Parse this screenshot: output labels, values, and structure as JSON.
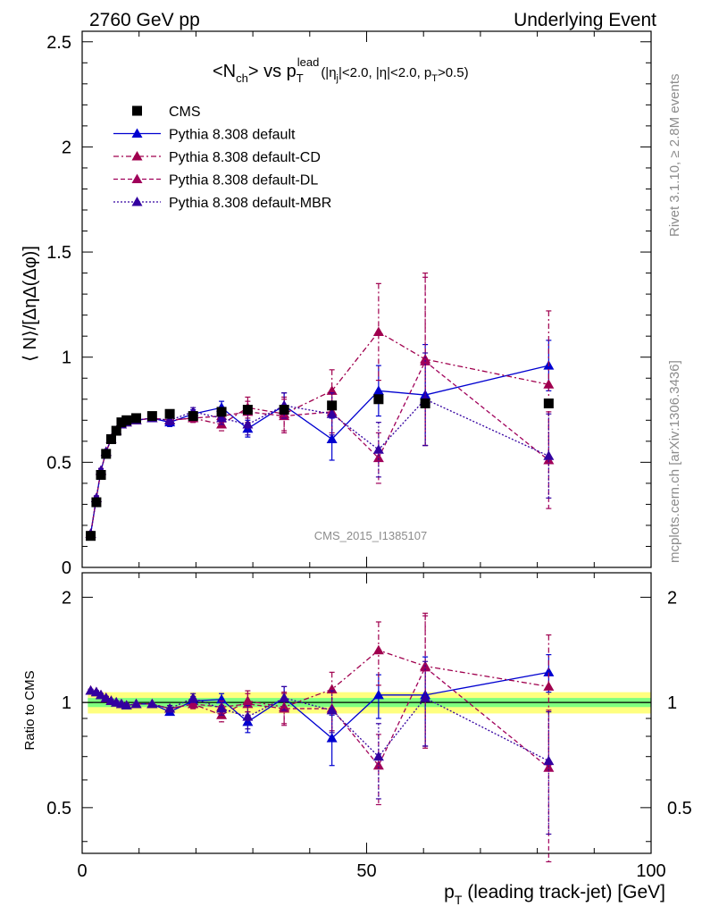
{
  "header": {
    "left": "2760 GeV pp",
    "right": "Underlying Event"
  },
  "title": {
    "main": "<N",
    "main_sub": "ch",
    "main_rest": "> vs p",
    "pt_sub": "T",
    "pt_sup": "lead",
    "cuts_1": "(|η",
    "cuts_sub1": "j",
    "cuts_2": "|<2.0, |η|<2.0, p",
    "cuts_sub2": "T",
    "cuts_3": ">0.5)"
  },
  "side_labels": {
    "rivet": "Rivet 3.1.10, ≥ 2.8M events",
    "mcplots": "mcplots.cern.ch [arXiv:1306.3436]"
  },
  "watermark": "CMS_2015_I1385107",
  "ylabel_main": "⟨ N⟩/[ΔηΔ(Δφ)]",
  "ylabel_ratio": "Ratio to CMS",
  "xlabel": {
    "p": "p",
    "sub": "T",
    "rest": " (leading track-jet) [GeV]"
  },
  "colors": {
    "data": "#000000",
    "default": "#0000d0",
    "cd": "#a0004e",
    "dl": "#a0005a",
    "mbr": "#3300a0",
    "band_inner": "#7fff7f",
    "band_outer": "#ffff7f"
  },
  "chart_data": [
    {
      "type": "scatter",
      "panel": "main",
      "xlim": [
        0,
        100
      ],
      "ylim": [
        0,
        2.55
      ],
      "x_ticks": [
        "0",
        "50",
        "100"
      ],
      "y_ticks": [
        "0",
        "0.5",
        "1",
        "1.5",
        "2",
        "2.5"
      ],
      "x": [
        1.5,
        2.5,
        3.3,
        4.2,
        5.1,
        6.0,
        6.9,
        7.8,
        9.5,
        12.3,
        15.4,
        19.5,
        24.5,
        29.1,
        35.5,
        43.9,
        52.1,
        60.3,
        82.0
      ],
      "series": [
        {
          "name": "CMS",
          "marker": "square",
          "color_key": "data",
          "y": [
            0.15,
            0.31,
            0.44,
            0.54,
            0.61,
            0.65,
            0.69,
            0.7,
            0.71,
            0.72,
            0.73,
            0.72,
            0.74,
            0.75,
            0.75,
            0.77,
            0.8,
            0.78,
            0.78
          ],
          "err": [
            0.01,
            0.01,
            0.01,
            0.01,
            0.01,
            0.01,
            0.01,
            0.01,
            0.01,
            0.01,
            0.01,
            0.01,
            0.01,
            0.01,
            0.01,
            0.01,
            0.01,
            0.01,
            0.01
          ]
        },
        {
          "name": "Pythia 8.308 default",
          "marker": "triangle",
          "dash": "solid",
          "color_key": "default",
          "y": [
            0.16,
            0.33,
            0.46,
            0.55,
            0.61,
            0.65,
            0.68,
            0.69,
            0.7,
            0.71,
            0.69,
            0.73,
            0.76,
            0.66,
            0.77,
            0.61,
            0.84,
            0.82,
            0.96
          ],
          "err": [
            0.01,
            0.01,
            0.01,
            0.01,
            0.01,
            0.01,
            0.01,
            0.01,
            0.01,
            0.01,
            0.02,
            0.02,
            0.03,
            0.04,
            0.06,
            0.1,
            0.12,
            0.24,
            0.12
          ]
        },
        {
          "name": "Pythia 8.308 default-CD",
          "marker": "triangle",
          "dash": "6,3,2,3",
          "color_key": "cd",
          "y": [
            0.16,
            0.33,
            0.46,
            0.55,
            0.61,
            0.65,
            0.68,
            0.69,
            0.7,
            0.71,
            0.7,
            0.71,
            0.68,
            0.76,
            0.73,
            0.84,
            1.12,
            0.99,
            0.87
          ],
          "err": [
            0.01,
            0.01,
            0.01,
            0.01,
            0.01,
            0.01,
            0.01,
            0.01,
            0.01,
            0.01,
            0.02,
            0.02,
            0.03,
            0.05,
            0.08,
            0.1,
            0.23,
            0.41,
            0.35
          ]
        },
        {
          "name": "Pythia 8.308 default-DL",
          "marker": "triangle",
          "dash": "5,3",
          "color_key": "dl",
          "y": [
            0.16,
            0.33,
            0.46,
            0.55,
            0.61,
            0.65,
            0.68,
            0.69,
            0.7,
            0.71,
            0.7,
            0.71,
            0.72,
            0.74,
            0.72,
            0.74,
            0.52,
            0.98,
            0.51
          ],
          "err": [
            0.01,
            0.01,
            0.01,
            0.01,
            0.01,
            0.01,
            0.01,
            0.01,
            0.01,
            0.01,
            0.02,
            0.02,
            0.03,
            0.05,
            0.08,
            0.1,
            0.12,
            0.4,
            0.23
          ]
        },
        {
          "name": "Pythia 8.308 default-MBR",
          "marker": "triangle",
          "dash": "2,2",
          "color_key": "mbr",
          "y": [
            0.16,
            0.33,
            0.46,
            0.55,
            0.61,
            0.65,
            0.68,
            0.69,
            0.7,
            0.71,
            0.7,
            0.74,
            0.71,
            0.68,
            0.77,
            0.73,
            0.56,
            0.8,
            0.53
          ],
          "err": [
            0.01,
            0.01,
            0.01,
            0.01,
            0.01,
            0.01,
            0.01,
            0.01,
            0.01,
            0.01,
            0.02,
            0.02,
            0.03,
            0.05,
            0.06,
            0.1,
            0.13,
            0.22,
            0.2
          ]
        }
      ],
      "legend_position": "top-left"
    },
    {
      "type": "scatter",
      "panel": "ratio",
      "xlim": [
        0,
        100
      ],
      "ylim": [
        0.37,
        2.35
      ],
      "log_y": true,
      "x_ticks": [
        "0",
        "50",
        "100"
      ],
      "y_ticks": [
        "0.5",
        "1",
        "2"
      ],
      "x": [
        1.5,
        2.5,
        3.3,
        4.2,
        5.1,
        6.0,
        6.9,
        7.8,
        9.5,
        12.3,
        15.4,
        19.5,
        24.5,
        29.1,
        35.5,
        43.9,
        52.1,
        60.3,
        82.0
      ],
      "band_inner_halfwidth": 0.03,
      "band_outer_halfwidth": 0.07,
      "series": [
        {
          "name": "Pythia 8.308 default",
          "color_key": "default",
          "dash": "solid",
          "y": [
            1.08,
            1.07,
            1.05,
            1.03,
            1.01,
            1.0,
            0.99,
            0.98,
            0.99,
            0.99,
            0.94,
            1.01,
            1.02,
            0.88,
            1.03,
            0.79,
            1.05,
            1.05,
            1.22
          ],
          "err": [
            0.01,
            0.01,
            0.01,
            0.01,
            0.01,
            0.01,
            0.01,
            0.01,
            0.01,
            0.01,
            0.02,
            0.03,
            0.04,
            0.06,
            0.08,
            0.13,
            0.15,
            0.3,
            0.15
          ]
        },
        {
          "name": "Pythia 8.308 default-CD",
          "color_key": "cd",
          "dash": "6,3,2,3",
          "y": [
            1.08,
            1.07,
            1.05,
            1.03,
            1.01,
            1.0,
            0.99,
            0.98,
            0.99,
            0.99,
            0.96,
            0.99,
            0.92,
            1.01,
            0.97,
            1.09,
            1.41,
            1.27,
            1.11
          ],
          "err": [
            0.01,
            0.01,
            0.01,
            0.01,
            0.01,
            0.01,
            0.01,
            0.01,
            0.01,
            0.01,
            0.02,
            0.03,
            0.04,
            0.07,
            0.1,
            0.13,
            0.29,
            0.53,
            0.45
          ]
        },
        {
          "name": "Pythia 8.308 default-DL",
          "color_key": "dl",
          "dash": "5,3",
          "y": [
            1.08,
            1.07,
            1.05,
            1.03,
            1.01,
            1.0,
            0.99,
            0.98,
            0.99,
            0.99,
            0.96,
            0.99,
            0.97,
            0.99,
            0.96,
            0.96,
            0.66,
            1.26,
            0.65
          ],
          "err": [
            0.01,
            0.01,
            0.01,
            0.01,
            0.01,
            0.01,
            0.01,
            0.01,
            0.01,
            0.01,
            0.02,
            0.03,
            0.04,
            0.07,
            0.1,
            0.13,
            0.15,
            0.51,
            0.3
          ]
        },
        {
          "name": "Pythia 8.308 default-MBR",
          "color_key": "mbr",
          "dash": "2,2",
          "y": [
            1.08,
            1.07,
            1.05,
            1.03,
            1.01,
            1.0,
            0.99,
            0.98,
            0.99,
            0.99,
            0.96,
            1.03,
            0.96,
            0.91,
            1.03,
            0.95,
            0.7,
            1.03,
            0.68
          ],
          "err": [
            0.01,
            0.01,
            0.01,
            0.01,
            0.01,
            0.01,
            0.01,
            0.01,
            0.01,
            0.01,
            0.02,
            0.03,
            0.04,
            0.07,
            0.08,
            0.13,
            0.17,
            0.28,
            0.26
          ]
        }
      ]
    }
  ]
}
